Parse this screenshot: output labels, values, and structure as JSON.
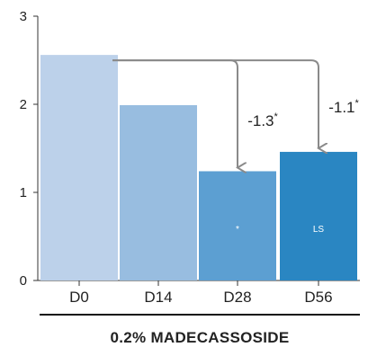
{
  "chart_data": {
    "type": "bar",
    "categories": [
      "D0",
      "D14",
      "D28",
      "D56"
    ],
    "values": [
      2.56,
      1.99,
      1.24,
      1.46
    ],
    "colors": [
      "#bcd1ea",
      "#98bde0",
      "#5c9fd2",
      "#2a86c2"
    ],
    "ylim": [
      0,
      3
    ],
    "yticks": [
      "0",
      "1",
      "2",
      "3"
    ],
    "xlabel": "0.2% MADECASSOSIDE",
    "ylabel": "",
    "bar_labels": [
      "",
      "",
      "*",
      "LS"
    ],
    "annotations": [
      {
        "from": "D0",
        "to": "D28",
        "text": "-1.3",
        "mark": "*"
      },
      {
        "from": "D0",
        "to": "D56",
        "text": "-1.1",
        "mark": "*"
      }
    ],
    "grid": false,
    "legend": "none"
  }
}
